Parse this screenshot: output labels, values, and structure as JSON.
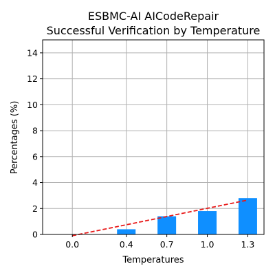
{
  "chart_data": {
    "type": "bar",
    "title_line1": "ESBMC-AI AICodeRepair",
    "title_line2": "Successful Verification by Temperature",
    "xlabel": "Temperatures",
    "ylabel": "Percentages (%)",
    "categories": [
      "0.0",
      "0.4",
      "0.7",
      "1.0",
      "1.3"
    ],
    "x": [
      0.0,
      0.4,
      0.7,
      1.0,
      1.3
    ],
    "values": [
      0.0,
      0.4,
      1.4,
      1.8,
      2.8
    ],
    "ylim": [
      0,
      15
    ],
    "yticks": [
      0,
      2,
      4,
      6,
      8,
      10,
      12,
      14
    ],
    "grid": true,
    "bar_color": "#0f8fff",
    "trendline": {
      "style": "dashed",
      "color": "#e81818",
      "x": [
        0.0,
        1.3
      ],
      "y": [
        -0.1,
        2.65
      ]
    }
  }
}
